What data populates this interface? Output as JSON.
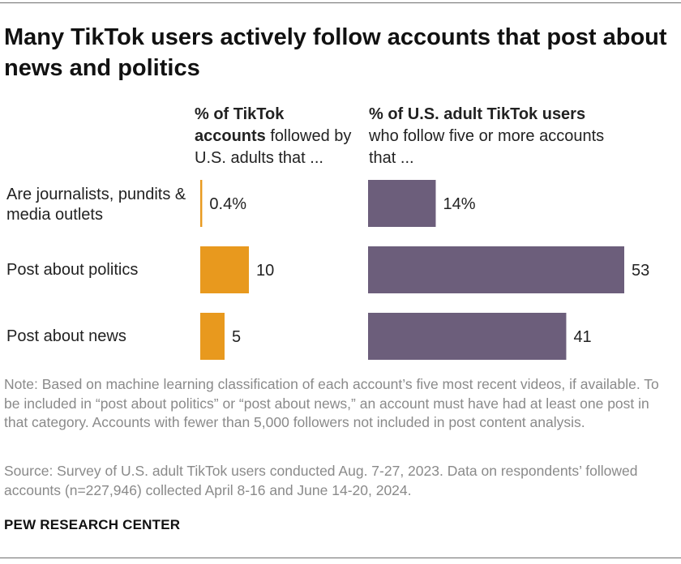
{
  "title": "Many TikTok users actively follow accounts that post about news and politics",
  "colors": {
    "left_bar": "#E8991E",
    "right_bar": "#6C5E7B"
  },
  "chart_data": [
    {
      "type": "bar",
      "orientation": "horizontal",
      "header_bold": "% of TikTok accounts",
      "header_rest": " followed by U.S. adults that ...",
      "categories": [
        "Are journalists, pundits & media outlets",
        "Post about politics",
        "Post about news"
      ],
      "values": [
        0.4,
        10,
        5
      ],
      "labels": [
        "0.4%",
        "10",
        "5"
      ],
      "color": "#E8991E"
    },
    {
      "type": "bar",
      "orientation": "horizontal",
      "header_bold": "% of U.S. adult TikTok users",
      "header_rest": " who follow five or more accounts that ...",
      "categories": [
        "Are journalists, pundits & media outlets",
        "Post about politics",
        "Post about news"
      ],
      "values": [
        14,
        53,
        41
      ],
      "labels": [
        "14%",
        "53",
        "41"
      ],
      "color": "#6C5E7B"
    }
  ],
  "note": "Note: Based on machine learning classification of each account’s five most recent videos, if available. To be included in “post about politics” or “post about news,” an account must have had at least one post in that category. Accounts with fewer than 5,000 followers not included in post content analysis.",
  "source": "Source: Survey of U.S. adult TikTok users conducted Aug. 7-27, 2023. Data on respondents’ followed accounts (n=227,946) collected April 8-16 and June 14-20, 2024.",
  "brand": "PEW RESEARCH CENTER"
}
